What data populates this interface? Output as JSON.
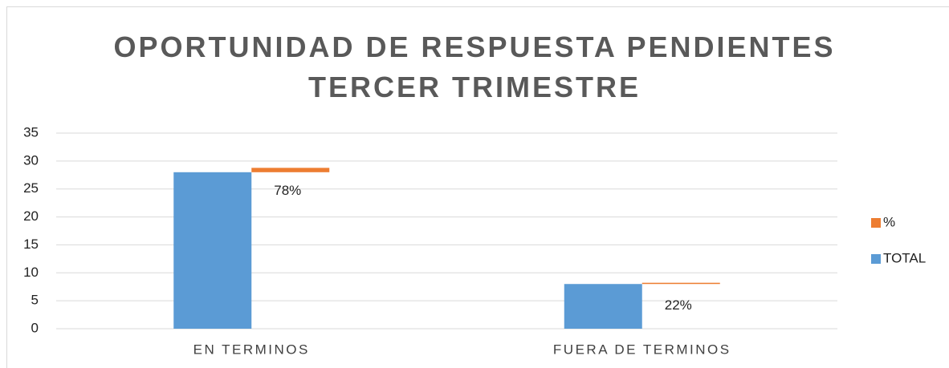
{
  "chart_data": {
    "type": "stacked_bar",
    "title": "OPORTUNIDAD DE RESPUESTA PENDIENTES TERCER TRIMESTRE",
    "categories": [
      "EN TERMINOS",
      "FUERA DE TERMINOS"
    ],
    "series": [
      {
        "name": "TOTAL",
        "color": "#5b9bd5",
        "values": [
          28,
          8
        ]
      },
      {
        "name": "%",
        "color": "#ed7d31",
        "values": [
          0.78,
          0.22
        ],
        "value_labels": [
          "78%",
          "22%"
        ]
      }
    ],
    "ylim": [
      0,
      35
    ],
    "yticks": [
      0,
      5,
      10,
      15,
      20,
      25,
      30,
      35
    ],
    "grid": true,
    "legend": "right"
  }
}
